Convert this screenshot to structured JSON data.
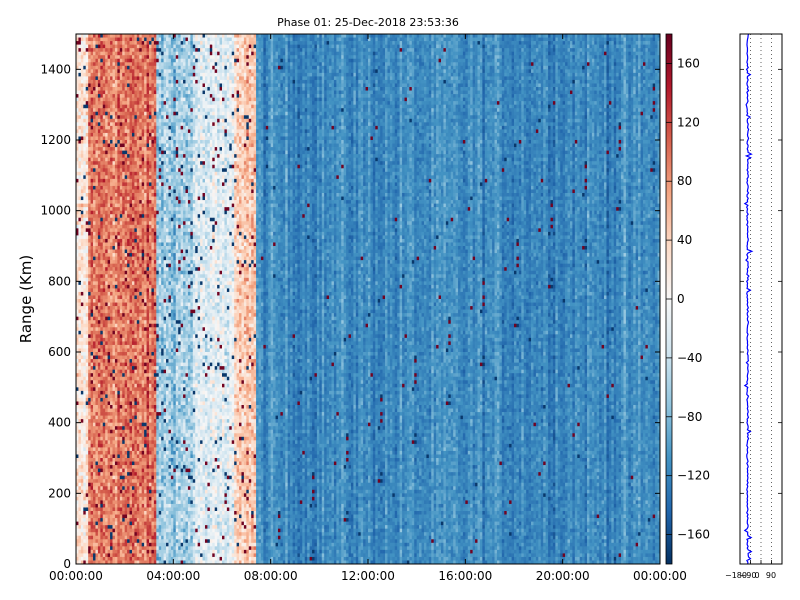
{
  "chart_data": [
    {
      "type": "heatmap",
      "title": "Phase 01: 25-Dec-2018 23:53:36",
      "xlabel": "",
      "ylabel": "Range (Km)",
      "x_tick_labels": [
        "00:00:00",
        "04:00:00",
        "08:00:00",
        "12:00:00",
        "16:00:00",
        "20:00:00",
        "00:00:00"
      ],
      "y_ticks": [
        0,
        200,
        400,
        600,
        800,
        1000,
        1200,
        1400
      ],
      "ylim": [
        0,
        1500
      ],
      "x_range_hours": [
        0,
        24
      ],
      "colormap": "RdBu_r",
      "colorbar": {
        "ticks": [
          -160,
          -120,
          -80,
          -40,
          0,
          40,
          80,
          120,
          160
        ],
        "tick_labels": [
          "−160",
          "−120",
          "−80",
          "−40",
          "0",
          "40",
          "80",
          "120",
          "160"
        ],
        "range": [
          -180,
          180
        ]
      },
      "phase_by_time_band": [
        {
          "from_hour": 0.0,
          "to_hour": 0.5,
          "mean_phase": 15
        },
        {
          "from_hour": 0.5,
          "to_hour": 3.3,
          "mean_phase": 95
        },
        {
          "from_hour": 3.3,
          "to_hour": 4.8,
          "mean_phase": -60
        },
        {
          "from_hour": 4.8,
          "to_hour": 6.5,
          "mean_phase": -25
        },
        {
          "from_hour": 6.5,
          "to_hour": 7.4,
          "mean_phase": 50
        },
        {
          "from_hour": 7.4,
          "to_hour": 24.0,
          "mean_phase": -115
        }
      ]
    },
    {
      "type": "line",
      "title": "",
      "xlabel": "",
      "ylabel": "",
      "x_tick_labels": [
        "−180",
        "−90",
        "0",
        "90"
      ],
      "xlim": [
        -180,
        180
      ],
      "ylim": [
        0,
        1500
      ],
      "grid": true,
      "series_color": "#0000ff",
      "mean_phase": -115
    }
  ],
  "colors": {
    "line": "#0000ff",
    "axis": "#000000",
    "background": "#ffffff"
  }
}
